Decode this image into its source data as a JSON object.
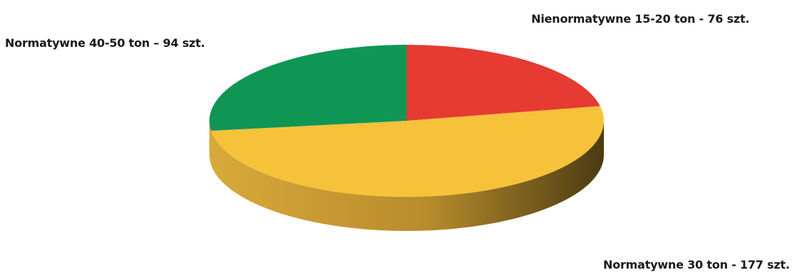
{
  "chart_data": {
    "type": "pie",
    "title": "",
    "style": "3d",
    "slices": [
      {
        "label": "Nienormatywne 15-20 ton - 76 szt.",
        "value": 76,
        "color": "#e53b32"
      },
      {
        "label": "Normatywne 30 ton - 177 szt.",
        "value": 177,
        "color": "#f6c23a"
      },
      {
        "label": "Normatywne 40-50 ton – 94 szt.",
        "value": 94,
        "color": "#0f9655"
      }
    ]
  }
}
